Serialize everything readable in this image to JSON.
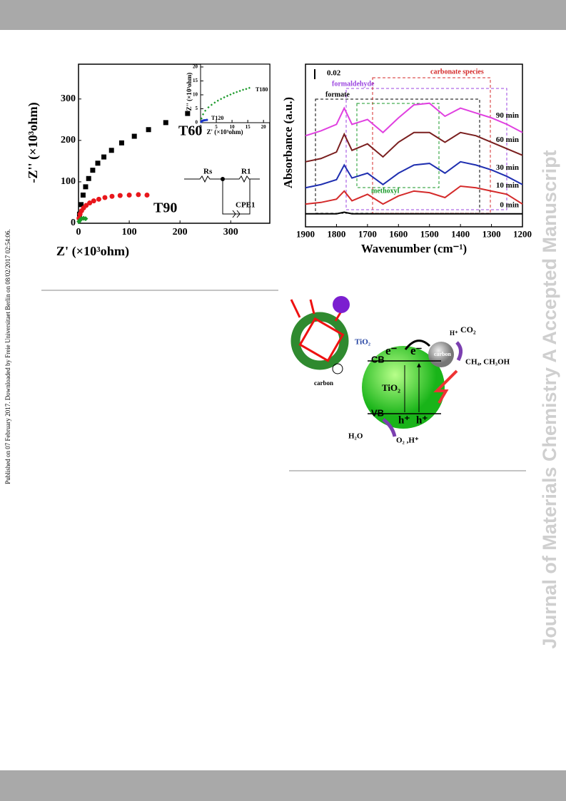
{
  "side_note": "Published on 07 February 2017. Downloaded by Freie Universitaet Berlin on 08/02/2017 02:54:06.",
  "watermark": "Journal of Materials Chemistry A Accepted Manuscript",
  "chart_data": [
    {
      "type": "scatter",
      "xlabel": "Z' (×10³ohm)",
      "ylabel": "-Z'' (×10³ohm)",
      "xlim": [
        0,
        377
      ],
      "ylim": [
        0,
        384
      ],
      "xticks": [
        0,
        100,
        200,
        300
      ],
      "yticks": [
        0,
        100,
        200,
        300
      ],
      "annotations": [
        "Rs",
        "R1",
        "CPE1"
      ],
      "series": [
        {
          "name": "T60",
          "color": "#000000",
          "marker": "square",
          "x": [
            2,
            5,
            9,
            14,
            20,
            28,
            38,
            50,
            65,
            85,
            110,
            138,
            172,
            215
          ],
          "values": [
            22,
            45,
            68,
            88,
            108,
            128,
            145,
            160,
            176,
            194,
            210,
            226,
            243,
            265
          ]
        },
        {
          "name": "T90",
          "color": "#e8161b",
          "marker": "circle",
          "x": [
            1,
            3,
            6,
            10,
            15,
            22,
            30,
            40,
            52,
            66,
            82,
            100,
            118,
            135
          ],
          "values": [
            12,
            22,
            30,
            37,
            43,
            49,
            54,
            58,
            62,
            65,
            67,
            68,
            69,
            68
          ]
        },
        {
          "name": "",
          "color": "#1a9a2a",
          "marker": "diamond",
          "x": [
            1,
            3,
            6,
            10,
            14
          ],
          "values": [
            4,
            8,
            11,
            12,
            11
          ]
        }
      ]
    },
    {
      "type": "scatter",
      "xlabel": "Z' (×10³ohm)",
      "ylabel": "-Z'' (×10³ohm)",
      "xlim": [
        0,
        22
      ],
      "ylim": [
        0,
        21
      ],
      "xticks": [
        0,
        5,
        10,
        15,
        20
      ],
      "yticks": [
        0,
        5,
        10,
        15,
        20
      ],
      "series": [
        {
          "name": "T180",
          "color": "#1a9a2a",
          "marker": "diamond",
          "x": [
            0.3,
            0.8,
            1.5,
            2.5,
            3.5,
            4.5,
            5.5,
            6.5,
            7.5,
            8.5,
            9.5,
            10.5,
            11.5,
            12.5,
            13.5,
            14.5,
            15.5
          ],
          "values": [
            1.5,
            3,
            4.3,
            5.5,
            6.4,
            7.2,
            7.9,
            8.5,
            9.1,
            9.6,
            10.1,
            10.6,
            11,
            11.4,
            11.8,
            12.1,
            12.5
          ]
        },
        {
          "name": "T120",
          "color": "#1a35c8",
          "marker": "circle",
          "x": [
            0.2,
            0.5,
            0.9,
            1.4,
            2
          ],
          "values": [
            0.3,
            0.6,
            0.8,
            0.9,
            1
          ]
        }
      ]
    },
    {
      "type": "line",
      "xlabel": "Wavenumber (cm⁻¹)",
      "ylabel": "Absorbance (a.u.)",
      "xlim": [
        1900,
        1200
      ],
      "ylim": [
        0,
        100
      ],
      "xticks": [
        1900,
        1800,
        1700,
        1600,
        1500,
        1400,
        1300,
        1200
      ],
      "x": [
        1900,
        1850,
        1800,
        1775,
        1750,
        1700,
        1650,
        1600,
        1550,
        1500,
        1450,
        1400,
        1350,
        1300,
        1250,
        1200
      ],
      "annotations": [
        "0.02",
        "formate",
        "formaldehyde",
        "carbonate species",
        "methoxyl"
      ],
      "series": [
        {
          "name": "0 min",
          "color": "#000000",
          "values": [
            8,
            8,
            8,
            9,
            8,
            8,
            8,
            8,
            8,
            8,
            8,
            8,
            8,
            8,
            8,
            8
          ]
        },
        {
          "name": "10 min",
          "color": "#d42a2a",
          "values": [
            14,
            15,
            17,
            22,
            16,
            20,
            14,
            19,
            22,
            21,
            18,
            25,
            24,
            22,
            20,
            14
          ]
        },
        {
          "name": "30 min",
          "color": "#1f2fb0",
          "values": [
            24,
            26,
            29,
            38,
            30,
            33,
            26,
            33,
            38,
            39,
            33,
            40,
            38,
            35,
            31,
            26
          ]
        },
        {
          "name": "60 min",
          "color": "#7a1f1f",
          "values": [
            40,
            42,
            46,
            57,
            47,
            51,
            43,
            52,
            58,
            58,
            52,
            58,
            56,
            52,
            48,
            44
          ]
        },
        {
          "name": "90 min",
          "color": "#e040e0",
          "values": [
            56,
            59,
            63,
            73,
            63,
            66,
            58,
            67,
            75,
            76,
            68,
            73,
            70,
            67,
            63,
            58
          ]
        }
      ]
    }
  ],
  "diagram": {
    "labels": [
      "TiO₂",
      "carbon",
      "CB",
      "VB",
      "e⁻",
      "e⁻",
      "h⁺",
      "h⁺",
      "TiO₂",
      "carbon",
      "H⁺",
      "CO₂",
      "CH₄, CH₃OH",
      "H₂O",
      "O₂ ,H⁺"
    ]
  }
}
